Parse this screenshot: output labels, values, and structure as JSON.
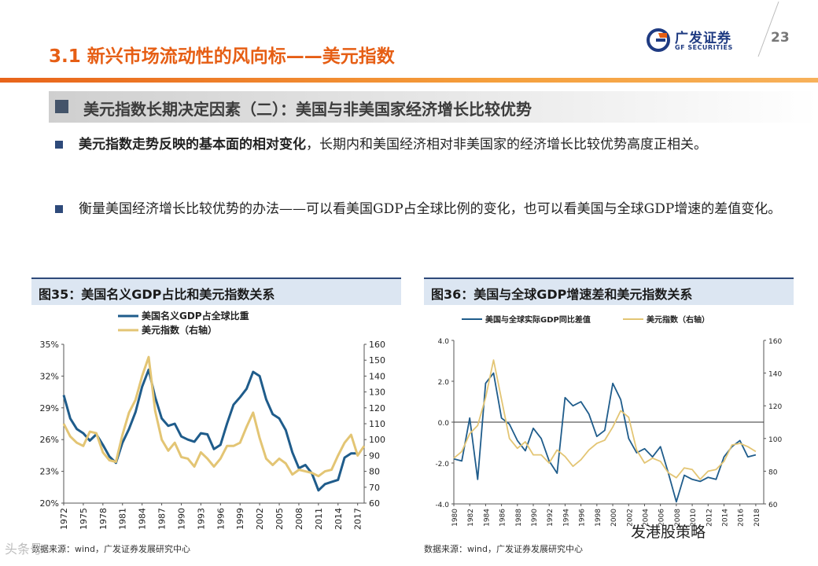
{
  "header": {
    "title": "3.1 新兴市场流动性的风向标——美元指数",
    "page_number": "23"
  },
  "logo": {
    "cn": "广发证券",
    "en": "GF SECURITIES"
  },
  "subtitle": "美元指数长期决定因素（二）：美国与非美国家经济增长比较优势",
  "bullets": [
    {
      "bold": "美元指数走势反映的基本面的相对变化",
      "rest": "，长期内和美国经济相对非美国家的经济增长比较优势高度正相关。"
    },
    {
      "bold": "",
      "rest": "衡量美国经济增长比较优势的办法——可以看美国GDP占全球比例的变化，也可以看美国与全球GDP增速的差值变化。"
    }
  ],
  "charts": [
    {
      "header": "图35：美国名义GDP占比和美元指数关系",
      "source": "数据来源：wind，广发证券发展研究中心"
    },
    {
      "header": "图36：美国与全球GDP增速差和美元指数关系",
      "source": "数据来源：wind，广发证券发展研究中心"
    }
  ],
  "watermark": "发港股策略",
  "watermark_logo": "头条号",
  "colors": {
    "accent": "#e65e14",
    "navy": "#1f5c8b",
    "gold": "#e3c574"
  },
  "chart_data": [
    {
      "type": "line",
      "legend": [
        "美国名义GDP占全球比重",
        "美元指数（右轴）"
      ],
      "x": {
        "range": [
          1972,
          2018
        ],
        "ticks": [
          "1972",
          "1975",
          "1978",
          "1981",
          "1984",
          "1987",
          "1990",
          "1993",
          "1996",
          "1999",
          "2002",
          "2005",
          "2008",
          "2011",
          "2014",
          "2017"
        ]
      },
      "y_left": {
        "range": [
          20,
          35
        ],
        "ticks": [
          "35%",
          "32%",
          "29%",
          "26%",
          "23%",
          "20%"
        ]
      },
      "y_right": {
        "range": [
          60,
          160
        ],
        "ticks": [
          "160",
          "150",
          "140",
          "130",
          "120",
          "110",
          "100",
          "90",
          "80",
          "70",
          "60"
        ]
      },
      "series": [
        {
          "name": "美国名义GDP占全球比重",
          "axis": "left",
          "color": "#1f5c8b",
          "points": [
            [
              1972,
              30.2
            ],
            [
              1973,
              28.0
            ],
            [
              1974,
              27.0
            ],
            [
              1975,
              26.6
            ],
            [
              1976,
              25.9
            ],
            [
              1977,
              26.5
            ],
            [
              1978,
              25.5
            ],
            [
              1979,
              24.4
            ],
            [
              1980,
              23.8
            ],
            [
              1981,
              25.7
            ],
            [
              1982,
              27.0
            ],
            [
              1983,
              28.6
            ],
            [
              1984,
              31.0
            ],
            [
              1985,
              32.6
            ],
            [
              1986,
              30.0
            ],
            [
              1987,
              28.0
            ],
            [
              1988,
              27.3
            ],
            [
              1989,
              27.5
            ],
            [
              1990,
              26.3
            ],
            [
              1991,
              26.0
            ],
            [
              1992,
              25.8
            ],
            [
              1993,
              26.6
            ],
            [
              1994,
              26.5
            ],
            [
              1995,
              25.1
            ],
            [
              1996,
              25.5
            ],
            [
              1997,
              27.5
            ],
            [
              1998,
              29.3
            ],
            [
              1999,
              30.0
            ],
            [
              2000,
              30.8
            ],
            [
              2001,
              32.4
            ],
            [
              2002,
              32.0
            ],
            [
              2003,
              29.8
            ],
            [
              2004,
              28.4
            ],
            [
              2005,
              28.0
            ],
            [
              2006,
              26.9
            ],
            [
              2007,
              24.8
            ],
            [
              2008,
              23.3
            ],
            [
              2009,
              23.6
            ],
            [
              2010,
              22.8
            ],
            [
              2011,
              21.2
            ],
            [
              2012,
              21.8
            ],
            [
              2013,
              22.0
            ],
            [
              2014,
              22.2
            ],
            [
              2015,
              24.3
            ],
            [
              2016,
              24.7
            ],
            [
              2017,
              24.7
            ]
          ]
        },
        {
          "name": "美元指数（右轴）",
          "axis": "right",
          "color": "#e3c574",
          "points": [
            [
              1972,
              110
            ],
            [
              1973,
              102
            ],
            [
              1974,
              98
            ],
            [
              1975,
              96
            ],
            [
              1976,
              105
            ],
            [
              1977,
              104
            ],
            [
              1978,
              92
            ],
            [
              1979,
              87
            ],
            [
              1980,
              86
            ],
            [
              1981,
              103
            ],
            [
              1982,
              117
            ],
            [
              1983,
              125
            ],
            [
              1984,
              140
            ],
            [
              1985,
              152
            ],
            [
              1986,
              118
            ],
            [
              1987,
              100
            ],
            [
              1988,
              93
            ],
            [
              1989,
              98
            ],
            [
              1990,
              89
            ],
            [
              1991,
              88
            ],
            [
              1992,
              83
            ],
            [
              1993,
              92
            ],
            [
              1994,
              88
            ],
            [
              1995,
              83
            ],
            [
              1996,
              88
            ],
            [
              1997,
              96
            ],
            [
              1998,
              96
            ],
            [
              1999,
              98
            ],
            [
              2000,
              108
            ],
            [
              2001,
              117
            ],
            [
              2002,
              101
            ],
            [
              2003,
              88
            ],
            [
              2004,
              84
            ],
            [
              2005,
              88
            ],
            [
              2006,
              85
            ],
            [
              2007,
              78
            ],
            [
              2008,
              81
            ],
            [
              2009,
              80
            ],
            [
              2010,
              79
            ],
            [
              2011,
              77
            ],
            [
              2012,
              80
            ],
            [
              2013,
              81
            ],
            [
              2014,
              90
            ],
            [
              2015,
              98
            ],
            [
              2016,
              103
            ],
            [
              2017,
              90
            ],
            [
              2018,
              96
            ]
          ]
        }
      ]
    },
    {
      "type": "line",
      "legend": [
        "美国与全球实际GDP同比差值",
        "美元指数（右轴）"
      ],
      "x": {
        "range": [
          1980,
          2019
        ],
        "ticks": [
          "1980",
          "1982",
          "1984",
          "1986",
          "1988",
          "1990",
          "1992",
          "1994",
          "1996",
          "1998",
          "2000",
          "2002",
          "2004",
          "2006",
          "2008",
          "2010",
          "2012",
          "2014",
          "2016",
          "2018"
        ]
      },
      "y_left": {
        "range": [
          -4.0,
          4.0
        ],
        "ticks": [
          "4.0",
          "2.0",
          "0.0",
          "-2.0",
          "-4.0"
        ]
      },
      "y_right": {
        "range": [
          60,
          160
        ],
        "ticks": [
          "160",
          "140",
          "120",
          "100",
          "80",
          "60"
        ]
      },
      "series": [
        {
          "name": "美国与全球实际GDP同比差值",
          "axis": "left",
          "color": "#1f5c8b",
          "points": [
            [
              1980,
              -1.8
            ],
            [
              1981,
              -1.9
            ],
            [
              1982,
              0.2
            ],
            [
              1983,
              -2.8
            ],
            [
              1984,
              1.9
            ],
            [
              1985,
              2.4
            ],
            [
              1986,
              0.2
            ],
            [
              1987,
              -0.1
            ],
            [
              1988,
              -0.9
            ],
            [
              1989,
              -1.4
            ],
            [
              1990,
              -0.3
            ],
            [
              1991,
              -0.8
            ],
            [
              1992,
              -1.9
            ],
            [
              1993,
              -2.5
            ],
            [
              1994,
              1.2
            ],
            [
              1995,
              0.8
            ],
            [
              1996,
              1.0
            ],
            [
              1997,
              0.4
            ],
            [
              1998,
              -0.7
            ],
            [
              1999,
              -0.4
            ],
            [
              2000,
              1.9
            ],
            [
              2001,
              1.1
            ],
            [
              2002,
              -0.8
            ],
            [
              2003,
              -1.5
            ],
            [
              2004,
              -1.3
            ],
            [
              2005,
              -1.7
            ],
            [
              2006,
              -1.2
            ],
            [
              2007,
              -2.5
            ],
            [
              2008,
              -3.9
            ],
            [
              2009,
              -2.6
            ],
            [
              2010,
              -2.8
            ],
            [
              2011,
              -2.9
            ],
            [
              2012,
              -2.7
            ],
            [
              2013,
              -2.8
            ],
            [
              2014,
              -1.7
            ],
            [
              2015,
              -1.2
            ],
            [
              2016,
              -0.9
            ],
            [
              2017,
              -1.7
            ],
            [
              2018,
              -1.6
            ]
          ]
        },
        {
          "name": "美元指数（右轴）",
          "axis": "right",
          "color": "#e3c574",
          "points": [
            [
              1980,
              88
            ],
            [
              1981,
              92
            ],
            [
              1982,
              103
            ],
            [
              1983,
              108
            ],
            [
              1984,
              125
            ],
            [
              1985,
              148
            ],
            [
              1986,
              124
            ],
            [
              1987,
              100
            ],
            [
              1988,
              94
            ],
            [
              1989,
              98
            ],
            [
              1990,
              90
            ],
            [
              1991,
              90
            ],
            [
              1992,
              85
            ],
            [
              1993,
              93
            ],
            [
              1994,
              89
            ],
            [
              1995,
              83
            ],
            [
              1996,
              87
            ],
            [
              1997,
              93
            ],
            [
              1998,
              97
            ],
            [
              1999,
              99
            ],
            [
              2000,
              107
            ],
            [
              2001,
              117
            ],
            [
              2002,
              113
            ],
            [
              2003,
              93
            ],
            [
              2004,
              85
            ],
            [
              2005,
              88
            ],
            [
              2006,
              86
            ],
            [
              2007,
              79
            ],
            [
              2008,
              76
            ],
            [
              2009,
              82
            ],
            [
              2010,
              81
            ],
            [
              2011,
              75
            ],
            [
              2012,
              80
            ],
            [
              2013,
              81
            ],
            [
              2014,
              86
            ],
            [
              2015,
              96
            ],
            [
              2016,
              97
            ],
            [
              2017,
              95
            ],
            [
              2018,
              92
            ]
          ]
        }
      ]
    }
  ]
}
